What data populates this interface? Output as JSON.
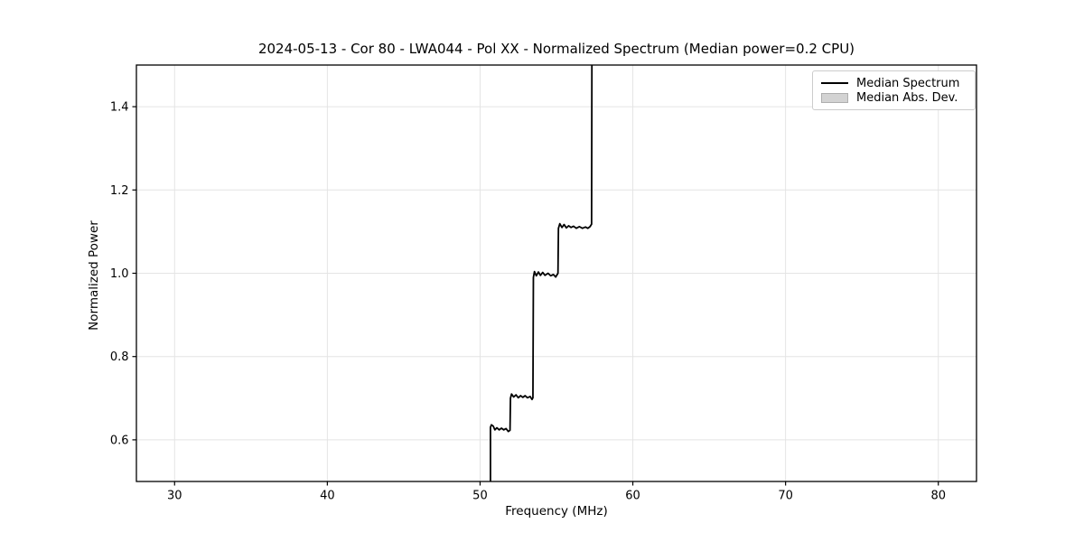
{
  "chart_data": {
    "type": "line",
    "title": "2024-05-13 - Cor 80 - LWA044 - Pol XX - Normalized Spectrum (Median power=0.2 CPU)",
    "xlabel": "Frequency (MHz)",
    "ylabel": "Normalized Power",
    "xlim": [
      27.5,
      82.5
    ],
    "ylim": [
      0.5,
      1.5
    ],
    "xticks": [
      30,
      40,
      50,
      60,
      70,
      80
    ],
    "xtick_labels": [
      "30",
      "40",
      "50",
      "60",
      "70",
      "80"
    ],
    "yticks": [
      0.6,
      0.8,
      1.0,
      1.2,
      1.4
    ],
    "ytick_labels": [
      "0.6",
      "0.8",
      "1.0",
      "1.2",
      "1.4"
    ],
    "grid": true,
    "grid_color": "#e4e4e4",
    "axis_color": "#000000",
    "background_color": "#ffffff",
    "legend": {
      "position": "upper-right",
      "entries": [
        {
          "label": "Median Spectrum",
          "type": "line",
          "color": "#000000"
        },
        {
          "label": "Median Abs. Dev.",
          "type": "patch",
          "fill": "#d3d3d3",
          "edge": "#aeaeae"
        }
      ]
    },
    "series": [
      {
        "name": "Median Spectrum",
        "color": "#000000",
        "line_width": 1.8,
        "points": [
          [
            50.68,
            0.5
          ],
          [
            50.68,
            0.63
          ],
          [
            50.74,
            0.636
          ],
          [
            50.86,
            0.633
          ],
          [
            50.97,
            0.624
          ],
          [
            51.1,
            0.629
          ],
          [
            51.25,
            0.624
          ],
          [
            51.4,
            0.628
          ],
          [
            51.55,
            0.624
          ],
          [
            51.7,
            0.627
          ],
          [
            51.85,
            0.62
          ],
          [
            51.96,
            0.623
          ],
          [
            51.99,
            0.7
          ],
          [
            52.06,
            0.71
          ],
          [
            52.2,
            0.703
          ],
          [
            52.35,
            0.708
          ],
          [
            52.5,
            0.701
          ],
          [
            52.65,
            0.706
          ],
          [
            52.8,
            0.702
          ],
          [
            52.95,
            0.706
          ],
          [
            53.1,
            0.701
          ],
          [
            53.28,
            0.704
          ],
          [
            53.4,
            0.697
          ],
          [
            53.46,
            0.701
          ],
          [
            53.49,
            0.99
          ],
          [
            53.56,
            1.004
          ],
          [
            53.68,
            0.994
          ],
          [
            53.82,
            1.003
          ],
          [
            53.95,
            0.995
          ],
          [
            54.1,
            1.002
          ],
          [
            54.25,
            0.995
          ],
          [
            54.45,
            1.0
          ],
          [
            54.62,
            0.994
          ],
          [
            54.8,
            0.997
          ],
          [
            54.95,
            0.991
          ],
          [
            55.1,
            1.0
          ],
          [
            55.13,
            1.108
          ],
          [
            55.22,
            1.119
          ],
          [
            55.36,
            1.11
          ],
          [
            55.5,
            1.117
          ],
          [
            55.65,
            1.109
          ],
          [
            55.8,
            1.114
          ],
          [
            55.95,
            1.11
          ],
          [
            56.12,
            1.113
          ],
          [
            56.3,
            1.108
          ],
          [
            56.5,
            1.112
          ],
          [
            56.7,
            1.108
          ],
          [
            56.9,
            1.111
          ],
          [
            57.05,
            1.108
          ],
          [
            57.2,
            1.112
          ],
          [
            57.3,
            1.118
          ],
          [
            57.32,
            1.5
          ]
        ]
      }
    ]
  }
}
